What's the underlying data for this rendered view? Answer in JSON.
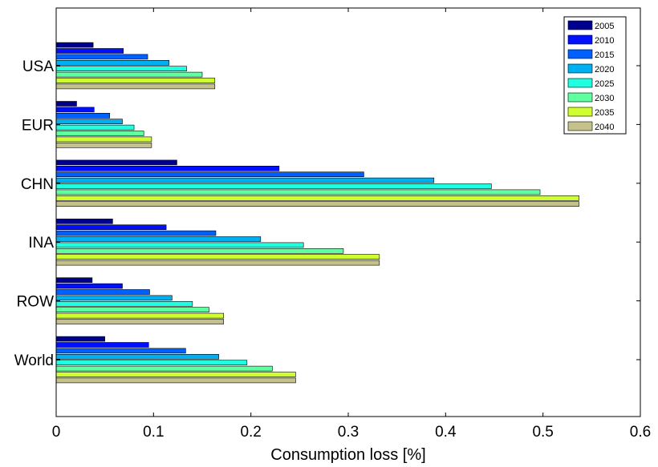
{
  "chart_data": {
    "type": "bar",
    "orientation": "horizontal",
    "title": "",
    "xlabel": "Consumption loss [%]",
    "ylabel": "",
    "xlim": [
      0,
      0.6
    ],
    "xticks": [
      "0",
      "0.1",
      "0.2",
      "0.3",
      "0.4",
      "0.5",
      "0.6"
    ],
    "grid": false,
    "legend_position": "top-right",
    "categories": [
      "USA",
      "EUR",
      "CHN",
      "INA",
      "ROW",
      "World"
    ],
    "series": [
      {
        "name": "2005",
        "color": "#00008F",
        "values": [
          0.038,
          0.021,
          0.124,
          0.058,
          0.037,
          0.05
        ]
      },
      {
        "name": "2010",
        "color": "#0010FF",
        "values": [
          0.069,
          0.039,
          0.229,
          0.113,
          0.068,
          0.095
        ]
      },
      {
        "name": "2015",
        "color": "#0060FF",
        "values": [
          0.094,
          0.055,
          0.316,
          0.164,
          0.096,
          0.133
        ]
      },
      {
        "name": "2020",
        "color": "#00AFEF",
        "values": [
          0.116,
          0.068,
          0.388,
          0.21,
          0.119,
          0.167
        ]
      },
      {
        "name": "2025",
        "color": "#20FFDF",
        "values": [
          0.134,
          0.08,
          0.447,
          0.254,
          0.14,
          0.196
        ]
      },
      {
        "name": "2030",
        "color": "#60FF9F",
        "values": [
          0.15,
          0.09,
          0.497,
          0.295,
          0.157,
          0.222
        ]
      },
      {
        "name": "2035",
        "color": "#CFFF30",
        "values": [
          0.163,
          0.098,
          0.537,
          0.332,
          0.172,
          0.246
        ]
      },
      {
        "name": "2040",
        "color": "#C4C28A",
        "values": [
          0.163,
          0.098,
          0.537,
          0.332,
          0.172,
          0.246
        ]
      }
    ]
  }
}
